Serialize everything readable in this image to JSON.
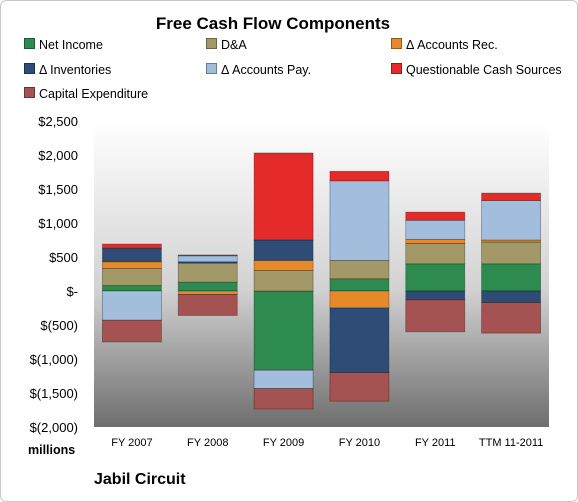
{
  "chart_data": {
    "type": "bar",
    "stacked": true,
    "title": "Free Cash Flow Components",
    "categories": [
      "FY 2007",
      "FY 2008",
      "FY 2009",
      "FY 2010",
      "FY 2011",
      "TTM 11-2011"
    ],
    "ylim": [
      -2000,
      2500
    ],
    "yticks": [
      -2000,
      -1500,
      -1000,
      -500,
      0,
      500,
      1000,
      1500,
      2000,
      2500
    ],
    "ytick_labels": [
      "$(2,000)",
      "$(1,500)",
      "$(1,000)",
      "$(500)",
      "$-",
      "$500",
      "$1,000",
      "$1,500",
      "$2,000",
      "$2,500"
    ],
    "ylabel": "millions",
    "legend_position": "top",
    "grid": false,
    "series": [
      {
        "name": "Net Income",
        "color": "#2e8b50",
        "values": [
          80,
          130,
          -1165,
          180,
          400,
          400
        ]
      },
      {
        "name": "D&A",
        "color": "#a39867",
        "values": [
          250,
          280,
          300,
          270,
          300,
          320
        ]
      },
      {
        "name": "Δ Accounts Rec.",
        "color": "#e5892a",
        "values": [
          100,
          -50,
          150,
          -250,
          60,
          30
        ]
      },
      {
        "name": "Δ Inventories",
        "color": "#2f4c77",
        "values": [
          200,
          20,
          300,
          -950,
          -130,
          -170
        ]
      },
      {
        "name": "Δ Accounts Pay.",
        "color": "#a3bddd",
        "values": [
          -430,
          90,
          -270,
          1170,
          280,
          580
        ]
      },
      {
        "name": "Questionable Cash Sources",
        "color": "#e52a2a",
        "values": [
          60,
          10,
          1280,
          140,
          120,
          110
        ]
      },
      {
        "name": "Capital Expenditure",
        "color": "#a55252",
        "values": [
          -320,
          -310,
          -300,
          -420,
          -470,
          -450
        ]
      }
    ]
  },
  "footer": {
    "units_label": "millions",
    "company": "Jabil Circuit"
  }
}
